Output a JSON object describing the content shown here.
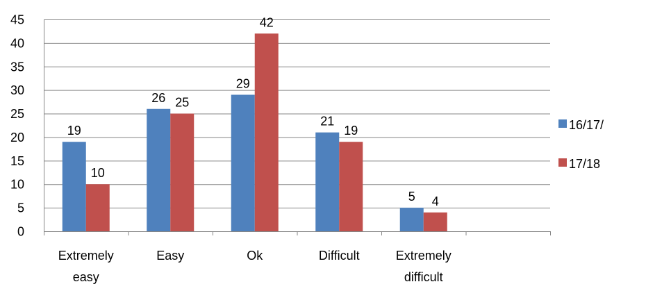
{
  "chart_data": {
    "type": "bar",
    "categories": [
      "Extremely easy",
      "Easy",
      "Ok",
      "Difficult",
      "Extremely difficult"
    ],
    "category_lines": [
      [
        "Extremely",
        "easy"
      ],
      [
        "Easy"
      ],
      [
        "Ok"
      ],
      [
        "Difficult"
      ],
      [
        "Extremely",
        "difficult"
      ]
    ],
    "series": [
      {
        "name": "16/17/",
        "values": [
          19,
          26,
          29,
          21,
          5
        ],
        "color": "#4F81BD"
      },
      {
        "name": "17/18",
        "values": [
          10,
          25,
          42,
          19,
          4
        ],
        "color": "#C0504D"
      }
    ],
    "ylim": [
      0,
      45
    ],
    "ytick_step": 5,
    "yticks": [
      "0",
      "5",
      "10",
      "15",
      "20",
      "25",
      "30",
      "35",
      "40",
      "45"
    ],
    "grid": true,
    "data_labels": true,
    "legend_position": "right",
    "title": "",
    "xlabel": "",
    "ylabel": ""
  }
}
